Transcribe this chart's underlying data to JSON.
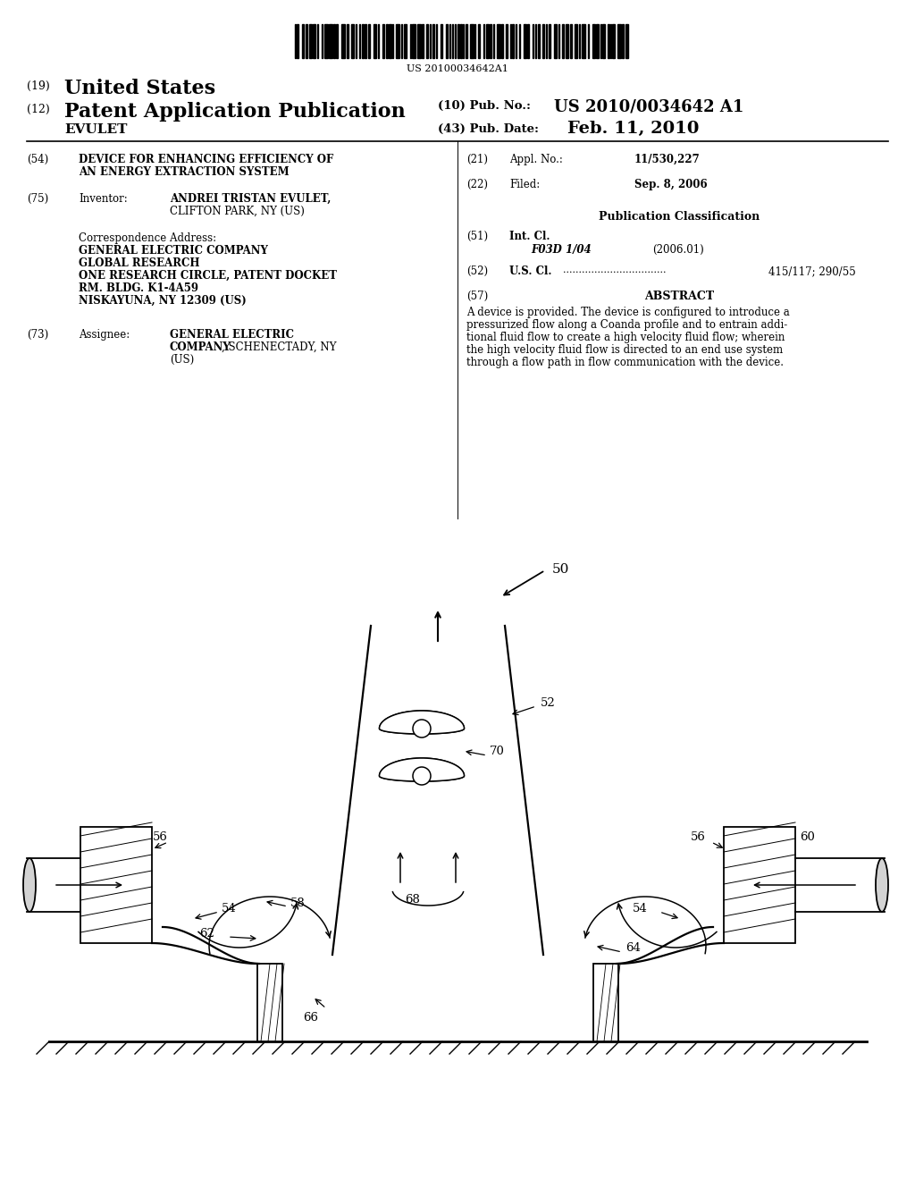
{
  "background_color": "#ffffff",
  "barcode_text": "US 20100034642A1",
  "header_line1_num": "(19)",
  "header_line1_text": "United States",
  "header_line2_num": "(12)",
  "header_line2_text": "Patent Application Publication",
  "header_pub_no_label": "(10) Pub. No.:",
  "header_pub_no_val": "US 2010/0034642 A1",
  "header_name": "EVULET",
  "header_date_label": "(43) Pub. Date:",
  "header_date_val": "Feb. 11, 2010",
  "field54_num": "(54)",
  "field54_line1": "DEVICE FOR ENHANCING EFFICIENCY OF",
  "field54_line2": "AN ENERGY EXTRACTION SYSTEM",
  "field21_num": "(21)",
  "field21_label": "Appl. No.:",
  "field21_val": "11/530,227",
  "field75_num": "(75)",
  "field75_label": "Inventor:",
  "field75_name": "ANDREI TRISTAN EVULET,",
  "field75_addr": "CLIFTON PARK, NY (US)",
  "field22_num": "(22)",
  "field22_label": "Filed:",
  "field22_val": "Sep. 8, 2006",
  "corr_label": "Correspondence Address:",
  "corr_line1": "GENERAL ELECTRIC COMPANY",
  "corr_line2": "GLOBAL RESEARCH",
  "corr_line3": "ONE RESEARCH CIRCLE, PATENT DOCKET",
  "corr_line4": "RM. BLDG. K1-4A59",
  "corr_line5": "NISKAYUNA, NY 12309 (US)",
  "pub_class_label": "Publication Classification",
  "field51_num": "(51)",
  "field51_label": "Int. Cl.",
  "field51_class": "F03D 1/04",
  "field51_year": "(2006.01)",
  "field52_num": "(52)",
  "field52_label": "U.S. Cl.",
  "field52_dots": ".................................",
  "field52_val": "415/117; 290/55",
  "field73_num": "(73)",
  "field73_label": "Assignee:",
  "field73_val1": "GENERAL ELECTRIC",
  "field73_val2": "COMPANY",
  "field73_val3": ", SCHENECTADY, NY",
  "field73_val4": "(US)",
  "field57_num": "(57)",
  "field57_label": "ABSTRACT",
  "abstract_line1": "A device is provided. The device is configured to introduce a",
  "abstract_line2": "pressurized flow along a Coanda profile and to entrain addi-",
  "abstract_line3": "tional fluid flow to create a high velocity fluid flow; wherein",
  "abstract_line4": "the high velocity fluid flow is directed to an end use system",
  "abstract_line5": "through a flow path in flow communication with the device."
}
